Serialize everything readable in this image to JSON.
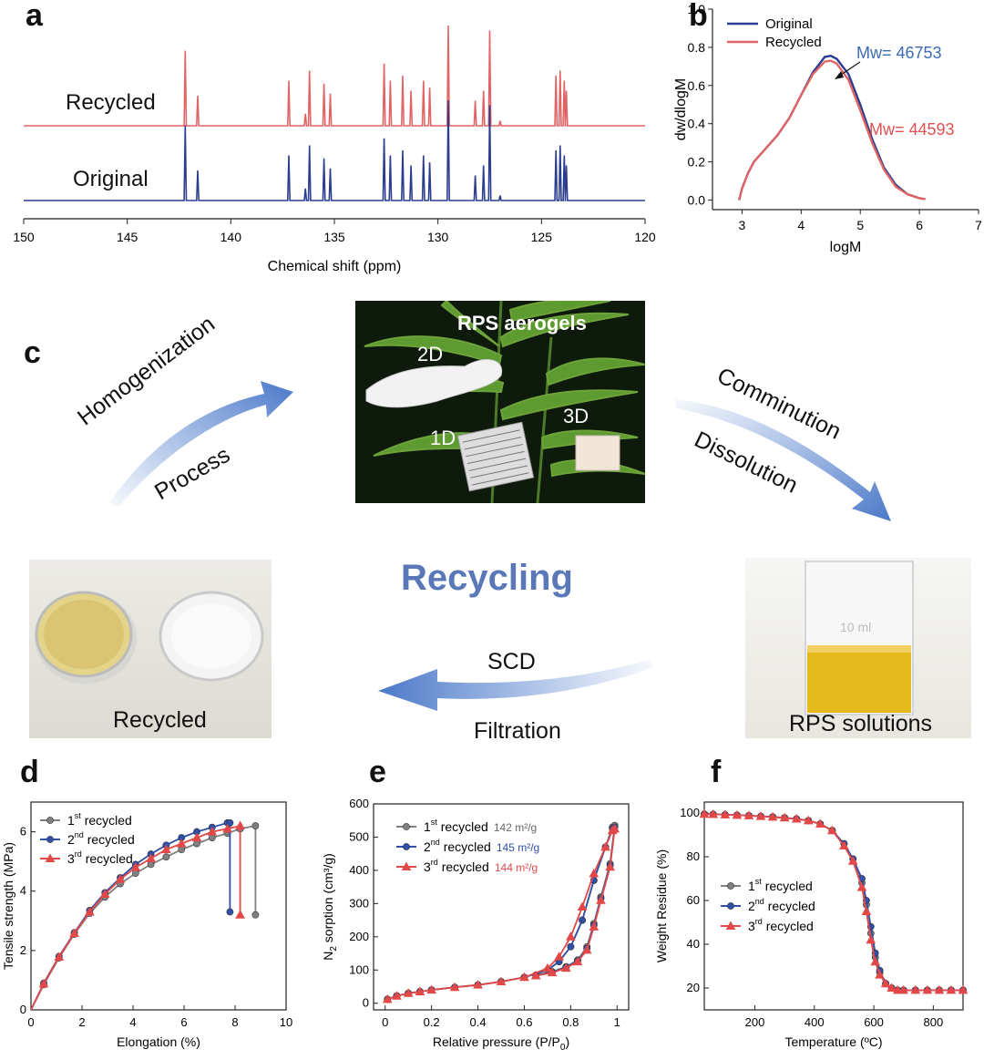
{
  "panel_labels": {
    "a": "a",
    "b": "b",
    "c": "c",
    "d": "d",
    "e": "e",
    "f": "f"
  },
  "colors": {
    "original": "#2b3d8f",
    "recycled": "#e06464",
    "series1": "#808080",
    "series2": "#2f4fa8",
    "series3": "#e24848",
    "accent": "#5a78b8"
  },
  "panel_c": {
    "title": "Recycling",
    "arrow_left_top": "Homogenization",
    "arrow_left_bottom": "Process",
    "arrow_right_top": "Comminution",
    "arrow_right_bottom": "Dissolution",
    "arrow_bottom_top": "SCD",
    "arrow_bottom_bottom": "Filtration",
    "photo_aerogels": {
      "title": "RPS aerogels",
      "label_2d": "2D",
      "label_1d": "1D",
      "label_3d": "3D"
    },
    "photo_recycled": {
      "caption": "Recycled"
    },
    "photo_solutions": {
      "caption": "RPS solutions",
      "beaker_text": "10 ml"
    }
  },
  "chart_data": [
    {
      "id": "a",
      "type": "line",
      "title": "",
      "xlabel": "Chemical shift (ppm)",
      "ylabel": "",
      "xlim": [
        150,
        120
      ],
      "x_ticks": [
        150,
        145,
        140,
        135,
        130,
        125,
        120
      ],
      "series": [
        {
          "name": "Recycled",
          "peaks": [
            [
              142.2,
              0.75
            ],
            [
              141.6,
              0.3
            ],
            [
              137.2,
              0.45
            ],
            [
              136.4,
              0.12
            ],
            [
              136.2,
              0.55
            ],
            [
              135.5,
              0.42
            ],
            [
              135.2,
              0.32
            ],
            [
              132.6,
              0.62
            ],
            [
              132.3,
              0.45
            ],
            [
              131.7,
              0.5
            ],
            [
              131.3,
              0.35
            ],
            [
              130.7,
              0.45
            ],
            [
              130.4,
              0.38
            ],
            [
              129.5,
              1.0
            ],
            [
              128.2,
              0.25
            ],
            [
              127.8,
              0.35
            ],
            [
              127.5,
              0.95
            ],
            [
              127.0,
              0.05
            ],
            [
              124.3,
              0.5
            ],
            [
              124.1,
              0.55
            ],
            [
              123.9,
              0.45
            ],
            [
              123.8,
              0.35
            ]
          ]
        },
        {
          "name": "Original",
          "peaks": [
            [
              142.2,
              0.75
            ],
            [
              141.6,
              0.3
            ],
            [
              137.2,
              0.45
            ],
            [
              136.4,
              0.12
            ],
            [
              136.2,
              0.55
            ],
            [
              135.5,
              0.42
            ],
            [
              135.2,
              0.32
            ],
            [
              132.6,
              0.62
            ],
            [
              132.3,
              0.45
            ],
            [
              131.7,
              0.5
            ],
            [
              131.3,
              0.35
            ],
            [
              130.7,
              0.45
            ],
            [
              130.4,
              0.38
            ],
            [
              129.5,
              1.0
            ],
            [
              128.2,
              0.25
            ],
            [
              127.8,
              0.35
            ],
            [
              127.5,
              0.95
            ],
            [
              127.0,
              0.05
            ],
            [
              124.3,
              0.5
            ],
            [
              124.1,
              0.55
            ],
            [
              123.9,
              0.45
            ],
            [
              123.8,
              0.35
            ]
          ]
        }
      ]
    },
    {
      "id": "b",
      "type": "line",
      "title": "",
      "xlabel": "logM",
      "ylabel": "dw/dlogM",
      "xlim": [
        2.5,
        7
      ],
      "ylim": [
        -0.05,
        1.0
      ],
      "x_ticks": [
        3,
        4,
        5,
        6,
        7
      ],
      "y_ticks": [
        0.0,
        0.2,
        0.4,
        0.6,
        0.8,
        1.0
      ],
      "series": [
        {
          "name": "Original",
          "x": [
            2.95,
            3.0,
            3.1,
            3.2,
            3.4,
            3.6,
            3.8,
            4.0,
            4.2,
            4.4,
            4.5,
            4.6,
            4.8,
            5.0,
            5.2,
            5.4,
            5.6,
            5.8,
            6.0,
            6.1
          ],
          "y": [
            0.0,
            0.06,
            0.14,
            0.2,
            0.27,
            0.34,
            0.43,
            0.55,
            0.67,
            0.75,
            0.755,
            0.74,
            0.66,
            0.5,
            0.32,
            0.17,
            0.08,
            0.03,
            0.01,
            0.005
          ]
        },
        {
          "name": "Recycled",
          "x": [
            2.95,
            3.0,
            3.1,
            3.2,
            3.4,
            3.6,
            3.8,
            4.0,
            4.2,
            4.4,
            4.5,
            4.6,
            4.8,
            5.0,
            5.2,
            5.4,
            5.6,
            5.8,
            6.0,
            6.1
          ],
          "y": [
            0.0,
            0.06,
            0.14,
            0.2,
            0.27,
            0.34,
            0.43,
            0.55,
            0.66,
            0.725,
            0.73,
            0.715,
            0.63,
            0.47,
            0.3,
            0.16,
            0.07,
            0.03,
            0.01,
            0.005
          ]
        }
      ],
      "annotations": [
        "Mw= 46753",
        "Mw= 44593"
      ]
    },
    {
      "id": "d",
      "type": "line",
      "title": "",
      "xlabel": "Elongation (%)",
      "ylabel": "Tensile strength (MPa)",
      "xlim": [
        0,
        10
      ],
      "ylim": [
        0,
        7
      ],
      "x_ticks": [
        0,
        2,
        4,
        6,
        8,
        10
      ],
      "y_ticks": [
        0,
        2,
        4,
        6
      ],
      "series": [
        {
          "name": "1st recycled",
          "x": [
            0,
            0.5,
            1.1,
            1.7,
            2.3,
            2.9,
            3.5,
            4.1,
            4.7,
            5.3,
            5.9,
            6.5,
            7.1,
            7.7,
            8.2,
            8.8,
            8.8
          ],
          "y": [
            0,
            0.85,
            1.75,
            2.55,
            3.25,
            3.8,
            4.25,
            4.6,
            4.9,
            5.15,
            5.4,
            5.6,
            5.8,
            5.95,
            6.1,
            6.2,
            3.2
          ]
        },
        {
          "name": "2nd recycled",
          "x": [
            0,
            0.5,
            1.1,
            1.7,
            2.3,
            2.9,
            3.5,
            4.1,
            4.7,
            5.3,
            5.9,
            6.5,
            7.1,
            7.7,
            7.8,
            7.8
          ],
          "y": [
            0,
            0.9,
            1.8,
            2.6,
            3.35,
            3.95,
            4.45,
            4.9,
            5.25,
            5.55,
            5.8,
            6.0,
            6.15,
            6.3,
            6.3,
            3.3
          ]
        },
        {
          "name": "3rd recycled",
          "x": [
            0,
            0.5,
            1.1,
            1.7,
            2.3,
            2.9,
            3.5,
            4.1,
            4.7,
            5.3,
            5.9,
            6.5,
            7.1,
            7.7,
            8.2,
            8.2
          ],
          "y": [
            0,
            0.88,
            1.78,
            2.58,
            3.3,
            3.9,
            4.4,
            4.8,
            5.1,
            5.4,
            5.6,
            5.8,
            6.0,
            6.1,
            6.2,
            3.2
          ]
        }
      ]
    },
    {
      "id": "e",
      "type": "line",
      "title": "",
      "xlabel": "Relative pressure (P/P",
      "xlabel_sub": "0",
      "xlabel_end": ")",
      "ylabel": "N",
      "ylabel_sub": "2",
      "ylabel_end": " sorption (cm³/g)",
      "xlim": [
        -0.05,
        1.05
      ],
      "ylim": [
        -20,
        600
      ],
      "x_ticks": [
        0.0,
        0.2,
        0.4,
        0.6,
        0.8,
        1.0
      ],
      "y_ticks": [
        0,
        100,
        200,
        300,
        400,
        500,
        600
      ],
      "series": [
        {
          "name": "1st recycled",
          "area": "142 m²/g",
          "x": [
            0.01,
            0.05,
            0.1,
            0.15,
            0.2,
            0.3,
            0.4,
            0.5,
            0.6,
            0.7,
            0.75,
            0.8,
            0.85,
            0.9,
            0.95,
            0.98,
            0.99,
            0.97,
            0.93,
            0.9,
            0.87,
            0.83,
            0.78,
            0.72,
            0.65
          ],
          "y": [
            12,
            22,
            30,
            35,
            40,
            48,
            55,
            65,
            78,
            100,
            125,
            170,
            250,
            370,
            470,
            530,
            535,
            420,
            320,
            240,
            170,
            130,
            110,
            95,
            85
          ]
        },
        {
          "name": "2nd recycled",
          "area": "145 m²/g",
          "x": [
            0.01,
            0.05,
            0.1,
            0.15,
            0.2,
            0.3,
            0.4,
            0.5,
            0.6,
            0.7,
            0.75,
            0.8,
            0.85,
            0.9,
            0.95,
            0.98,
            0.99,
            0.97,
            0.93,
            0.9,
            0.87,
            0.83,
            0.78,
            0.72,
            0.65
          ],
          "y": [
            12,
            22,
            30,
            35,
            40,
            48,
            55,
            65,
            78,
            100,
            125,
            170,
            250,
            370,
            470,
            525,
            530,
            415,
            315,
            235,
            165,
            128,
            108,
            93,
            84
          ]
        },
        {
          "name": "3rd recycled",
          "area": "144 m²/g",
          "x": [
            0.01,
            0.05,
            0.1,
            0.15,
            0.2,
            0.3,
            0.4,
            0.5,
            0.6,
            0.7,
            0.75,
            0.8,
            0.85,
            0.9,
            0.95,
            0.98,
            0.99,
            0.97,
            0.93,
            0.9,
            0.87,
            0.83,
            0.78,
            0.72,
            0.65
          ],
          "y": [
            12,
            22,
            30,
            35,
            40,
            48,
            55,
            65,
            78,
            105,
            140,
            200,
            290,
            390,
            470,
            520,
            525,
            410,
            310,
            230,
            160,
            125,
            106,
            92,
            83
          ]
        }
      ]
    },
    {
      "id": "f",
      "type": "line",
      "title": "",
      "xlabel": "Temperature (ºC)",
      "ylabel": "Weight Residue (%)",
      "xlim": [
        30,
        900
      ],
      "ylim": [
        10,
        105
      ],
      "x_ticks": [
        200,
        400,
        600,
        800
      ],
      "y_ticks": [
        20,
        40,
        60,
        80,
        100
      ],
      "series": [
        {
          "name": "1st recycled",
          "x": [
            30,
            60,
            100,
            140,
            180,
            220,
            260,
            300,
            340,
            380,
            420,
            460,
            500,
            530,
            560,
            575,
            590,
            605,
            620,
            640,
            660,
            680,
            700,
            740,
            780,
            820,
            860,
            900
          ],
          "y": [
            99.5,
            99.4,
            99.2,
            99,
            98.8,
            98.5,
            98.2,
            97.8,
            97.3,
            96.5,
            95,
            92,
            86,
            79,
            68,
            58,
            45,
            34,
            27,
            22,
            20,
            19,
            19,
            19,
            19,
            19,
            19,
            19
          ]
        },
        {
          "name": "2nd recycled",
          "x": [
            30,
            60,
            100,
            140,
            180,
            220,
            260,
            300,
            340,
            380,
            420,
            460,
            500,
            530,
            560,
            575,
            590,
            605,
            620,
            640,
            660,
            680,
            700,
            740,
            780,
            820,
            860,
            900
          ],
          "y": [
            99.5,
            99.4,
            99.2,
            99,
            98.8,
            98.5,
            98.2,
            97.8,
            97.3,
            96.5,
            95,
            92,
            86,
            79,
            70,
            60,
            48,
            36,
            28,
            22,
            20,
            19,
            19,
            19,
            19,
            19,
            19,
            19
          ]
        },
        {
          "name": "3rd recycled",
          "x": [
            30,
            60,
            100,
            140,
            180,
            220,
            260,
            300,
            340,
            380,
            420,
            460,
            500,
            530,
            560,
            575,
            590,
            605,
            620,
            640,
            660,
            680,
            700,
            740,
            780,
            820,
            860,
            900
          ],
          "y": [
            99.5,
            99.4,
            99.2,
            99,
            98.8,
            98.5,
            98.2,
            97.8,
            97.3,
            96.5,
            95,
            92,
            85,
            78,
            66,
            55,
            42,
            32,
            26,
            22,
            20,
            19,
            19,
            19,
            19,
            19,
            19,
            19
          ]
        }
      ]
    }
  ],
  "legends": {
    "b": [
      "Original",
      "Recycled"
    ],
    "d": [
      {
        "n": "1",
        "sup": "st",
        "rest": " recycled"
      },
      {
        "n": "2",
        "sup": "nd",
        "rest": " recycled"
      },
      {
        "n": "3",
        "sup": "rd",
        "rest": "  recycled"
      }
    ],
    "e": [
      {
        "n": "1",
        "sup": "st",
        "rest": "  recycled",
        "area": "142 m²/g"
      },
      {
        "n": "2",
        "sup": "nd",
        "rest": " recycled",
        "area": "145 m²/g"
      },
      {
        "n": "3",
        "sup": "rd",
        "rest": "  recycled",
        "area": "144 m²/g"
      }
    ],
    "f": [
      {
        "n": "1",
        "sup": "st",
        "rest": "  recycled"
      },
      {
        "n": "2",
        "sup": "nd",
        "rest": " recycled"
      },
      {
        "n": "3",
        "sup": "rd",
        "rest": "  recycled"
      }
    ]
  }
}
